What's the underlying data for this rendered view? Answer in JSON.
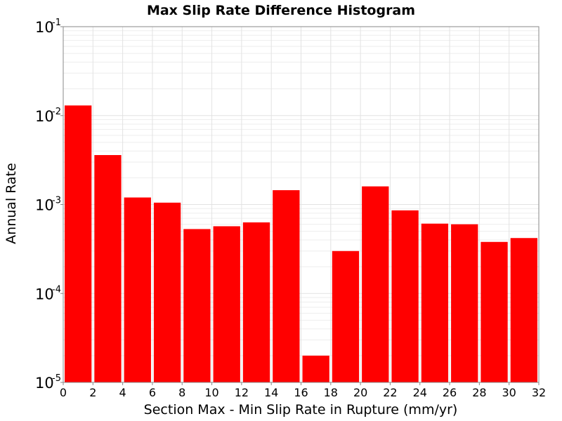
{
  "chart_data": {
    "type": "bar",
    "title": "Max Slip Rate Difference Histogram",
    "xlabel": "Section Max - Min Slip Rate in Rupture (mm/yr)",
    "ylabel": "Annual Rate",
    "xlim": [
      0,
      32
    ],
    "ylim": [
      1e-05,
      0.1
    ],
    "yscale": "log",
    "bin_width": 2,
    "x_ticks": [
      "0",
      "2",
      "4",
      "6",
      "8",
      "10",
      "12",
      "14",
      "16",
      "18",
      "20",
      "22",
      "24",
      "26",
      "28",
      "30",
      "32"
    ],
    "y_ticks": [
      {
        "base": "10",
        "exp": "-5",
        "value": 1e-05
      },
      {
        "base": "10",
        "exp": "-4",
        "value": 0.0001
      },
      {
        "base": "10",
        "exp": "-3",
        "value": 0.001
      },
      {
        "base": "10",
        "exp": "-2",
        "value": 0.01
      },
      {
        "base": "10",
        "exp": "-1",
        "value": 0.1
      }
    ],
    "grid": true,
    "bar_color": "#ff0000",
    "bins": [
      {
        "x_start": 0,
        "value": 0.013
      },
      {
        "x_start": 2,
        "value": 0.0036
      },
      {
        "x_start": 4,
        "value": 0.0012
      },
      {
        "x_start": 6,
        "value": 0.00105
      },
      {
        "x_start": 8,
        "value": 0.00053
      },
      {
        "x_start": 10,
        "value": 0.00057
      },
      {
        "x_start": 12,
        "value": 0.00063
      },
      {
        "x_start": 14,
        "value": 0.00145
      },
      {
        "x_start": 16,
        "value": 2e-05
      },
      {
        "x_start": 18,
        "value": 0.0003
      },
      {
        "x_start": 20,
        "value": 0.0016
      },
      {
        "x_start": 22,
        "value": 0.00086
      },
      {
        "x_start": 24,
        "value": 0.00061
      },
      {
        "x_start": 26,
        "value": 0.0006
      },
      {
        "x_start": 28,
        "value": 0.00038
      },
      {
        "x_start": 30,
        "value": 0.00042
      }
    ]
  }
}
